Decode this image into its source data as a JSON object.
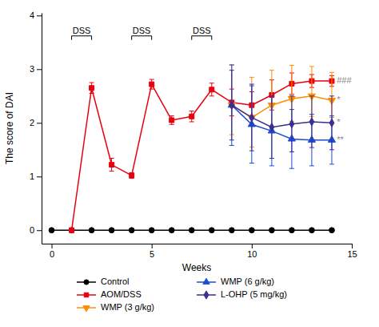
{
  "chart_data": {
    "type": "line",
    "xlabel": "Weeks",
    "ylabel": "The score of DAI",
    "xlim": [
      -0.5,
      15
    ],
    "ylim": [
      -0.25,
      4.05
    ],
    "xticks": [
      0,
      5,
      10,
      15
    ],
    "yticks": [
      0,
      1,
      2,
      3,
      4
    ],
    "legend": "bottom",
    "series": [
      {
        "name": "Control",
        "color": "#000000",
        "marker": "circle",
        "x": [
          0,
          1,
          2,
          3,
          4,
          5,
          6,
          7,
          8,
          9,
          10,
          11,
          12,
          13,
          14
        ],
        "values": [
          0,
          0,
          0,
          0,
          0,
          0,
          0,
          0,
          0,
          0,
          0,
          0,
          0,
          0,
          0
        ]
      },
      {
        "name": "AOM/DSS",
        "color": "#e8000d",
        "marker": "square",
        "x": [
          1,
          2,
          3,
          4,
          5,
          6,
          7,
          8,
          9,
          10,
          11,
          12,
          13,
          14
        ],
        "values": [
          0,
          2.65,
          1.22,
          1.02,
          2.72,
          2.05,
          2.12,
          2.62,
          2.38,
          2.33,
          2.52,
          2.73,
          2.78,
          2.78
        ],
        "error_low": [
          0,
          0.1,
          0.12,
          0.05,
          0.09,
          0.08,
          0.1,
          0.12,
          0.25,
          0.25,
          0.28,
          0.2,
          0.12,
          0.1
        ],
        "error_high": [
          0,
          0.1,
          0.12,
          0.05,
          0.09,
          0.08,
          0.1,
          0.12,
          0.25,
          0.25,
          0.28,
          0.2,
          0.12,
          0.1
        ]
      },
      {
        "name": "WMP (3 g/kg)",
        "color": "#ff8c00",
        "marker": "triangle-down",
        "x": [
          9,
          10,
          11,
          12,
          13,
          14
        ],
        "values": [
          2.33,
          2.1,
          2.33,
          2.45,
          2.5,
          2.42
        ],
        "error_low": [
          0.55,
          0.55,
          0.5,
          0.42,
          0.38,
          0.32
        ],
        "error_high": [
          0.75,
          0.75,
          0.65,
          0.62,
          0.55,
          0.52
        ]
      },
      {
        "name": "WMP (6 g/kg)",
        "color": "#1c4bd4",
        "marker": "triangle-up",
        "x": [
          9,
          10,
          11,
          12,
          13,
          14
        ],
        "values": [
          2.33,
          1.97,
          1.85,
          1.7,
          1.68,
          1.68
        ],
        "error_low": [
          0.75,
          0.72,
          0.65,
          0.55,
          0.48,
          0.45
        ],
        "error_high": [
          0.75,
          0.72,
          0.65,
          0.55,
          0.48,
          0.45
        ]
      },
      {
        "name": "L-OHP (5 mg/kg)",
        "color": "#3b2f8f",
        "marker": "diamond",
        "x": [
          9,
          10,
          11,
          12,
          13,
          14
        ],
        "values": [
          2.33,
          2.1,
          1.92,
          1.98,
          2.02,
          2.0
        ],
        "error_low": [
          0.65,
          0.62,
          0.58,
          0.52,
          0.48,
          0.5
        ],
        "error_high": [
          0.65,
          0.62,
          0.58,
          0.52,
          0.48,
          0.5
        ]
      }
    ],
    "brackets": [
      {
        "x1": 1,
        "x2": 2,
        "y": 3.62,
        "label": "DSS"
      },
      {
        "x1": 4,
        "x2": 5,
        "y": 3.62,
        "label": "DSS"
      },
      {
        "x1": 7,
        "x2": 8,
        "y": 3.62,
        "label": "DSS"
      }
    ],
    "annotations": [
      {
        "x": 14.25,
        "y": 2.78,
        "text": "###",
        "color": "#888888"
      },
      {
        "x": 14.25,
        "y": 2.42,
        "text": "*",
        "color": "#888888"
      },
      {
        "x": 14.25,
        "y": 2.0,
        "text": "*",
        "color": "#888888"
      },
      {
        "x": 14.25,
        "y": 1.68,
        "text": "**",
        "color": "#888888"
      }
    ]
  }
}
